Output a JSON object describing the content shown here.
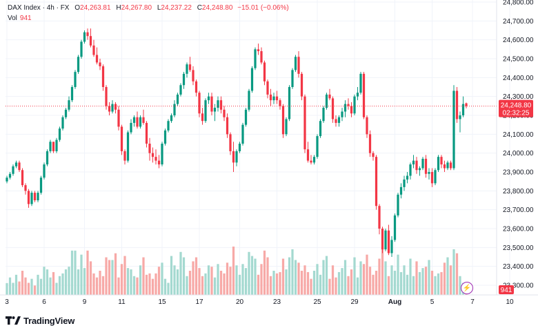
{
  "legend": {
    "symbol": "DAX Index · 4h · FX",
    "o_label": "O",
    "o_value": "24,263.81",
    "h_label": "H",
    "h_value": "24,267.80",
    "l_label": "L",
    "l_value": "24,237.22",
    "c_label": "C",
    "c_value": "24,248.80",
    "change": "−15.01 (−0.06%)",
    "vol_label": "Vol",
    "vol_value": "941"
  },
  "price_tag": {
    "price": "24,248.80",
    "countdown": "02:32:25",
    "color": "#f23645"
  },
  "volume_tag": {
    "value": "941",
    "color": "#f23645"
  },
  "logo": {
    "text": "TradingView"
  },
  "colors": {
    "up": "#089981",
    "down": "#f23645",
    "up_vol": "#a4d9d0",
    "down_vol": "#f7a9a7"
  },
  "chart_data": {
    "type": "candlestick",
    "y_ticks": [
      23300,
      23400,
      23500,
      23600,
      23700,
      23800,
      23900,
      24000,
      24100,
      24200,
      24300,
      24400,
      24500,
      24600,
      24700,
      24800
    ],
    "y_tick_labels": [
      "23,300.00",
      "23,400.00",
      "23,500.00",
      "23,600.00",
      "23,700.00",
      "23,800.00",
      "23,900.00",
      "24,000.00",
      "24,100.00",
      "24,200.00",
      "24,300.00",
      "24,400.00",
      "24,500.00",
      "24,600.00",
      "24,700.00",
      "24,800.00"
    ],
    "ylim": [
      23250,
      24820
    ],
    "x_ticks": [
      {
        "label": "3",
        "index": 0
      },
      {
        "label": "6",
        "index": 12
      },
      {
        "label": "9",
        "index": 25
      },
      {
        "label": "11",
        "index": 37
      },
      {
        "label": "15",
        "index": 50
      },
      {
        "label": "17",
        "index": 62
      },
      {
        "label": "20",
        "index": 75
      },
      {
        "label": "23",
        "index": 87
      },
      {
        "label": "25",
        "index": 100
      },
      {
        "label": "29",
        "index": 112
      },
      {
        "label": "Aug",
        "index": 125
      },
      {
        "label": "5",
        "index": 137
      },
      {
        "label": "7",
        "index": 150
      },
      {
        "label": "10",
        "index": 162
      }
    ],
    "last_price": 24248.8,
    "last_volume": 941,
    "candles": [
      [
        23850,
        23880,
        23840,
        23870,
        880
      ],
      [
        23870,
        23900,
        23860,
        23890,
        1300
      ],
      [
        23890,
        23940,
        23880,
        23930,
        900
      ],
      [
        23930,
        23960,
        23920,
        23950,
        1500
      ],
      [
        23950,
        23960,
        23900,
        23910,
        1000
      ],
      [
        23910,
        23920,
        23820,
        23830,
        1800
      ],
      [
        23830,
        23840,
        23780,
        23800,
        1300
      ],
      [
        23800,
        23810,
        23710,
        23730,
        900
      ],
      [
        23730,
        23800,
        23720,
        23790,
        1200
      ],
      [
        23790,
        23800,
        23740,
        23750,
        700
      ],
      [
        23750,
        23800,
        23740,
        23790,
        1500
      ],
      [
        23790,
        23880,
        23780,
        23870,
        1200
      ],
      [
        23870,
        23950,
        23860,
        23940,
        2100
      ],
      [
        23940,
        24020,
        23930,
        24010,
        1900
      ],
      [
        24010,
        24070,
        24000,
        24060,
        1300
      ],
      [
        24060,
        24060,
        24000,
        24010,
        1700
      ],
      [
        24010,
        24080,
        24000,
        24070,
        900
      ],
      [
        24070,
        24140,
        24060,
        24130,
        1400
      ],
      [
        24130,
        24200,
        24120,
        24190,
        1600
      ],
      [
        24190,
        24240,
        24180,
        24230,
        1900
      ],
      [
        24230,
        24300,
        24220,
        24280,
        2100
      ],
      [
        24280,
        24360,
        24270,
        24350,
        3300
      ],
      [
        24350,
        24440,
        24340,
        24430,
        3300
      ],
      [
        24430,
        24520,
        24420,
        24510,
        1900
      ],
      [
        24510,
        24600,
        24500,
        24590,
        3000
      ],
      [
        24590,
        24650,
        24580,
        24640,
        2000
      ],
      [
        24640,
        24660,
        24600,
        24620,
        3300
      ],
      [
        24620,
        24660,
        24560,
        24570,
        2500
      ],
      [
        24570,
        24600,
        24510,
        24520,
        1600
      ],
      [
        24520,
        24560,
        24470,
        24480,
        1300
      ],
      [
        24480,
        24500,
        24440,
        24460,
        1800
      ],
      [
        24460,
        24470,
        24330,
        24350,
        1400
      ],
      [
        24350,
        24360,
        24230,
        24250,
        2800
      ],
      [
        24250,
        24270,
        24200,
        24220,
        2600
      ],
      [
        24220,
        24280,
        24210,
        24260,
        2600
      ],
      [
        24260,
        24270,
        24210,
        24230,
        3100
      ],
      [
        24230,
        24250,
        24120,
        24140,
        1300
      ],
      [
        24140,
        24150,
        23990,
        24010,
        2300
      ],
      [
        24010,
        24020,
        23940,
        23960,
        2900
      ],
      [
        23960,
        24120,
        23950,
        24110,
        2000
      ],
      [
        24110,
        24180,
        24100,
        24160,
        1900
      ],
      [
        24160,
        24200,
        24140,
        24190,
        1400
      ],
      [
        24190,
        24220,
        24130,
        24140,
        1300
      ],
      [
        24140,
        24200,
        24130,
        24190,
        2200
      ],
      [
        24190,
        24230,
        24150,
        24160,
        2800
      ],
      [
        24160,
        24170,
        24030,
        24050,
        1500
      ],
      [
        24050,
        24080,
        23960,
        24000,
        1600
      ],
      [
        24000,
        24030,
        23950,
        23980,
        1200
      ],
      [
        23980,
        24020,
        23940,
        23960,
        1600
      ],
      [
        23960,
        23990,
        23920,
        23940,
        2100
      ],
      [
        23940,
        24060,
        23930,
        24050,
        2400
      ],
      [
        24050,
        24130,
        24040,
        24120,
        1200
      ],
      [
        24120,
        24180,
        24110,
        24170,
        900
      ],
      [
        24170,
        24210,
        24160,
        24200,
        2900
      ],
      [
        24200,
        24280,
        24190,
        24260,
        2200
      ],
      [
        24260,
        24320,
        24250,
        24310,
        1900
      ],
      [
        24310,
        24370,
        24300,
        24360,
        3200
      ],
      [
        24360,
        24430,
        24340,
        24420,
        2800
      ],
      [
        24420,
        24480,
        24400,
        24470,
        1400
      ],
      [
        24470,
        24510,
        24430,
        24440,
        1800
      ],
      [
        24440,
        24460,
        24360,
        24380,
        2500
      ],
      [
        24380,
        24390,
        24300,
        24320,
        2800
      ],
      [
        24320,
        24330,
        24190,
        24210,
        2000
      ],
      [
        24210,
        24240,
        24150,
        24170,
        1400
      ],
      [
        24170,
        24290,
        24160,
        24280,
        1600
      ],
      [
        24280,
        24320,
        24260,
        24300,
        2200
      ],
      [
        24300,
        24320,
        24200,
        24220,
        2100
      ],
      [
        24220,
        24260,
        24170,
        24240,
        1300
      ],
      [
        24240,
        24300,
        24220,
        24280,
        2300
      ],
      [
        24280,
        24300,
        24210,
        24230,
        1800
      ],
      [
        24230,
        24250,
        24170,
        24190,
        1600
      ],
      [
        24190,
        24210,
        24080,
        24100,
        2400
      ],
      [
        24100,
        24110,
        23990,
        24010,
        2100
      ],
      [
        24010,
        24060,
        23900,
        23950,
        3600
      ],
      [
        23950,
        24020,
        23930,
        24010,
        2200
      ],
      [
        24010,
        24060,
        24000,
        24050,
        1500
      ],
      [
        24050,
        24160,
        24040,
        24150,
        2300
      ],
      [
        24150,
        24240,
        24140,
        24230,
        2000
      ],
      [
        24230,
        24340,
        24220,
        24330,
        3200
      ],
      [
        24330,
        24460,
        24320,
        24450,
        2900
      ],
      [
        24450,
        24560,
        24440,
        24550,
        2700
      ],
      [
        24550,
        24580,
        24520,
        24540,
        1500
      ],
      [
        24540,
        24560,
        24470,
        24480,
        2300
      ],
      [
        24480,
        24490,
        24360,
        24380,
        3300
      ],
      [
        24380,
        24390,
        24290,
        24310,
        2800
      ],
      [
        24310,
        24340,
        24250,
        24280,
        1400
      ],
      [
        24280,
        24320,
        24260,
        24300,
        1800
      ],
      [
        24300,
        24330,
        24260,
        24280,
        1600
      ],
      [
        24280,
        24290,
        24230,
        24250,
        1700
      ],
      [
        24250,
        24260,
        24080,
        24100,
        2700
      ],
      [
        24100,
        24190,
        24090,
        24180,
        1900
      ],
      [
        24180,
        24360,
        24170,
        24350,
        2800
      ],
      [
        24350,
        24450,
        24340,
        24440,
        3400
      ],
      [
        24440,
        24520,
        24430,
        24510,
        2600
      ],
      [
        24510,
        24540,
        24400,
        24420,
        2400
      ],
      [
        24420,
        24430,
        24280,
        24300,
        1800
      ],
      [
        24300,
        24310,
        24000,
        24020,
        2200
      ],
      [
        24020,
        24060,
        23950,
        23960,
        1700
      ],
      [
        23960,
        23990,
        23940,
        23950,
        1200
      ],
      [
        23950,
        23990,
        23940,
        23980,
        1800
      ],
      [
        23980,
        24100,
        23970,
        24090,
        2300
      ],
      [
        24090,
        24180,
        24080,
        24170,
        1500
      ],
      [
        24170,
        24250,
        24160,
        24240,
        2600
      ],
      [
        24240,
        24320,
        24230,
        24310,
        2900
      ],
      [
        24310,
        24340,
        24280,
        24290,
        1200
      ],
      [
        24290,
        24300,
        24160,
        24180,
        2200
      ],
      [
        24180,
        24200,
        24140,
        24160,
        1300
      ],
      [
        24160,
        24200,
        24140,
        24190,
        1700
      ],
      [
        24190,
        24240,
        24170,
        24220,
        2000
      ],
      [
        24220,
        24280,
        24190,
        24260,
        2600
      ],
      [
        24260,
        24290,
        24230,
        24250,
        1400
      ],
      [
        24250,
        24270,
        24190,
        24210,
        1900
      ],
      [
        24210,
        24310,
        24200,
        24300,
        2800
      ],
      [
        24300,
        24350,
        24280,
        24320,
        1300
      ],
      [
        24320,
        24430,
        24310,
        24420,
        2500
      ],
      [
        24420,
        24430,
        24180,
        24190,
        2300
      ],
      [
        24190,
        24200,
        24080,
        24100,
        3000
      ],
      [
        24100,
        24120,
        23980,
        24000,
        2100
      ],
      [
        24000,
        24010,
        23960,
        23980,
        1500
      ],
      [
        23980,
        23990,
        23700,
        23720,
        1800
      ],
      [
        23720,
        23730,
        23570,
        23600,
        2700
      ],
      [
        23600,
        23610,
        23470,
        23490,
        3500
      ],
      [
        23490,
        23600,
        23480,
        23590,
        2500
      ],
      [
        23590,
        23620,
        23460,
        23470,
        1400
      ],
      [
        23470,
        23560,
        23450,
        23540,
        2200
      ],
      [
        23540,
        23680,
        23530,
        23670,
        1800
      ],
      [
        23670,
        23790,
        23660,
        23780,
        3000
      ],
      [
        23780,
        23840,
        23760,
        23820,
        1700
      ],
      [
        23820,
        23880,
        23800,
        23860,
        2200
      ],
      [
        23860,
        23900,
        23840,
        23880,
        1500
      ],
      [
        23880,
        23950,
        23860,
        23940,
        2700
      ],
      [
        23940,
        23990,
        23920,
        23960,
        1400
      ],
      [
        23960,
        23980,
        23890,
        23910,
        2500
      ],
      [
        23910,
        23930,
        23880,
        23920,
        1700
      ],
      [
        23920,
        23980,
        23910,
        23970,
        2000
      ],
      [
        23970,
        23990,
        23870,
        23890,
        2100
      ],
      [
        23890,
        23920,
        23860,
        23900,
        2600
      ],
      [
        23900,
        23920,
        23820,
        23840,
        1800
      ],
      [
        23840,
        23920,
        23830,
        23910,
        1400
      ],
      [
        23910,
        23990,
        23900,
        23980,
        1600
      ],
      [
        23980,
        23990,
        23920,
        23940,
        1700
      ],
      [
        23940,
        23960,
        23900,
        23920,
        2400
      ],
      [
        23920,
        23960,
        23910,
        23950,
        2800
      ],
      [
        23950,
        23960,
        23910,
        23920,
        2200
      ],
      [
        23920,
        24360,
        23910,
        24330,
        3400
      ],
      [
        24330,
        24350,
        24160,
        24180,
        3100
      ],
      [
        24180,
        24220,
        24110,
        24200,
        1400
      ],
      [
        24200,
        24300,
        24190,
        24260,
        900
      ],
      [
        24263.81,
        24267.8,
        24237.22,
        24248.8,
        941
      ]
    ]
  }
}
